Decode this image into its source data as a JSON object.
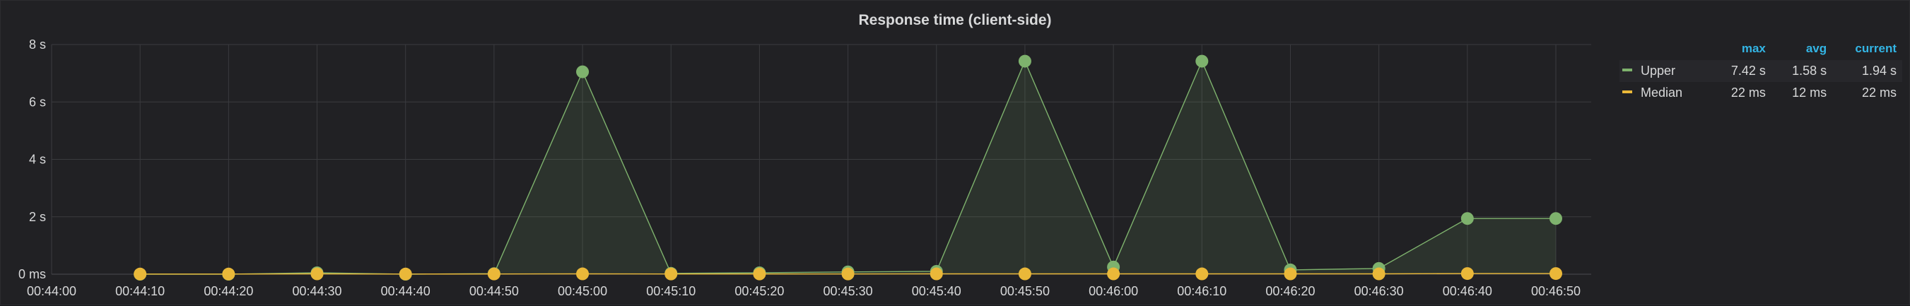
{
  "chart_data": {
    "type": "line",
    "title": "Response time (client-side)",
    "xlabel": "",
    "ylabel": "",
    "x_ticks": [
      "00:44:00",
      "00:44:10",
      "00:44:20",
      "00:44:30",
      "00:44:40",
      "00:44:50",
      "00:45:00",
      "00:45:10",
      "00:45:20",
      "00:45:30",
      "00:45:40",
      "00:45:50",
      "00:46:00",
      "00:46:10",
      "00:46:20",
      "00:46:30",
      "00:46:40",
      "00:46:50"
    ],
    "x": [
      "00:44:10",
      "00:44:20",
      "00:44:30",
      "00:44:40",
      "00:44:50",
      "00:45:00",
      "00:45:10",
      "00:45:20",
      "00:45:30",
      "00:45:40",
      "00:45:50",
      "00:46:00",
      "00:46:10",
      "00:46:20",
      "00:46:30",
      "00:46:40",
      "00:46:50"
    ],
    "y_ticks": [
      {
        "label": "0 ms",
        "value": 0
      },
      {
        "label": "2 s",
        "value": 2
      },
      {
        "label": "4 s",
        "value": 4
      },
      {
        "label": "6 s",
        "value": 6
      },
      {
        "label": "8 s",
        "value": 8
      }
    ],
    "ylim": [
      0,
      8
    ],
    "y_unit": "s",
    "grid": true,
    "legend_position": "right",
    "series": [
      {
        "name": "Upper",
        "color": "#7eb26d",
        "values": [
          0.0,
          0.0,
          0.05,
          0.0,
          0.02,
          7.05,
          0.03,
          0.05,
          0.08,
          0.1,
          7.42,
          0.25,
          7.42,
          0.15,
          0.2,
          1.94,
          1.94
        ],
        "max": "7.42 s",
        "avg": "1.58 s",
        "current": "1.94 s"
      },
      {
        "name": "Median",
        "color": "#eab839",
        "values": [
          0.005,
          0.005,
          0.012,
          0.005,
          0.008,
          0.012,
          0.008,
          0.008,
          0.008,
          0.012,
          0.012,
          0.012,
          0.012,
          0.012,
          0.012,
          0.022,
          0.022
        ],
        "max": "22 ms",
        "avg": "12 ms",
        "current": "22 ms"
      }
    ]
  },
  "legend": {
    "headers": {
      "max": "max",
      "avg": "avg",
      "current": "current"
    }
  }
}
